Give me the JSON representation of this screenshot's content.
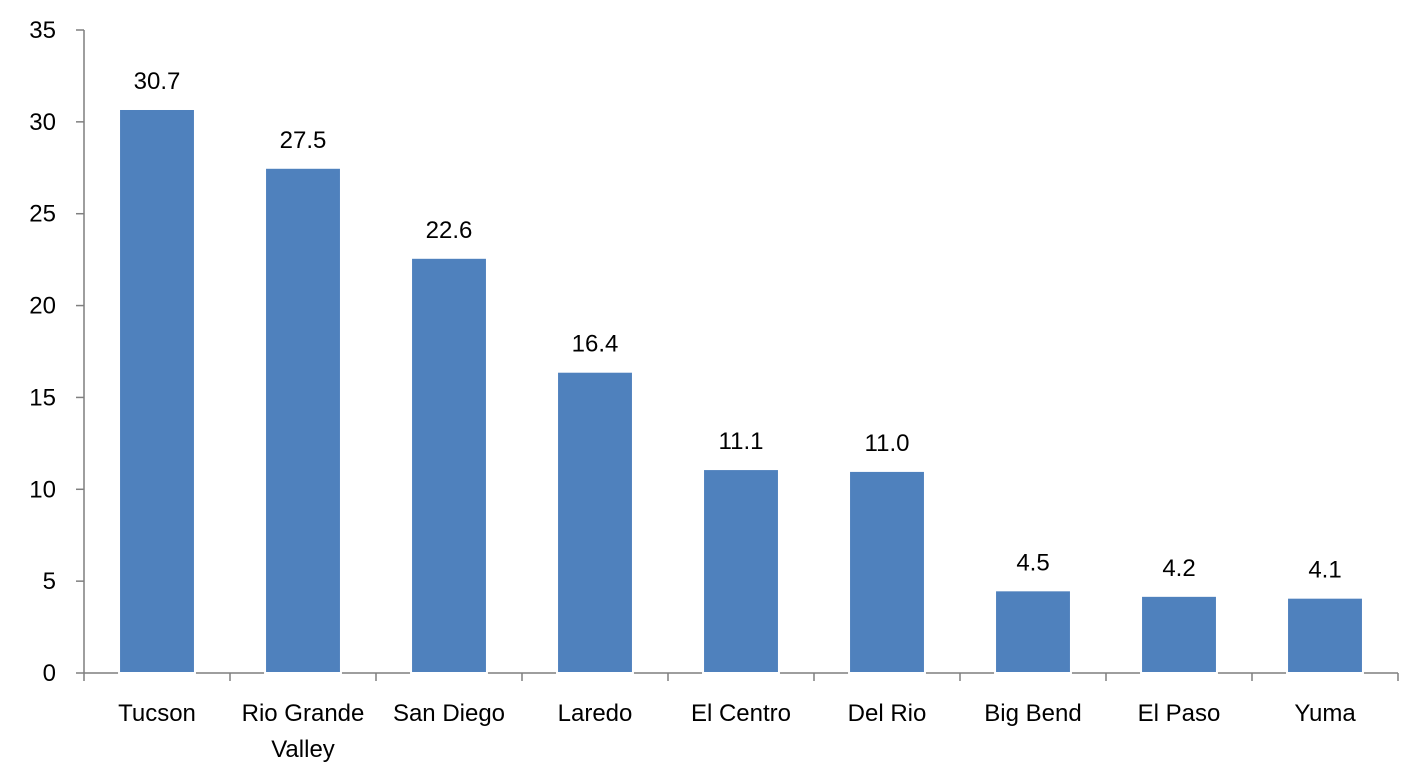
{
  "chart_data": {
    "type": "bar",
    "title": "",
    "xlabel": "",
    "ylabel": "",
    "categories": [
      [
        "Tucson"
      ],
      [
        "Rio Grande",
        "Valley"
      ],
      [
        "San Diego"
      ],
      [
        "Laredo"
      ],
      [
        "El Centro"
      ],
      [
        "Del Rio"
      ],
      [
        "Big Bend"
      ],
      [
        "El Paso"
      ],
      [
        "Yuma"
      ]
    ],
    "values": [
      30.7,
      27.5,
      22.6,
      16.4,
      11.1,
      11.0,
      4.5,
      4.2,
      4.1
    ],
    "data_labels": [
      "30.7",
      "27.5",
      "22.6",
      "16.4",
      "11.1",
      "11.0",
      "4.5",
      "4.2",
      "4.1"
    ],
    "ylim": [
      0,
      35
    ],
    "yticks": [
      0,
      5,
      10,
      15,
      20,
      25,
      30,
      35
    ],
    "grid": false,
    "legend": "none",
    "colors": {
      "bar": "#4F81BD",
      "bar_edge": "#FFFFFF",
      "axis": "#7F7F7F"
    }
  }
}
